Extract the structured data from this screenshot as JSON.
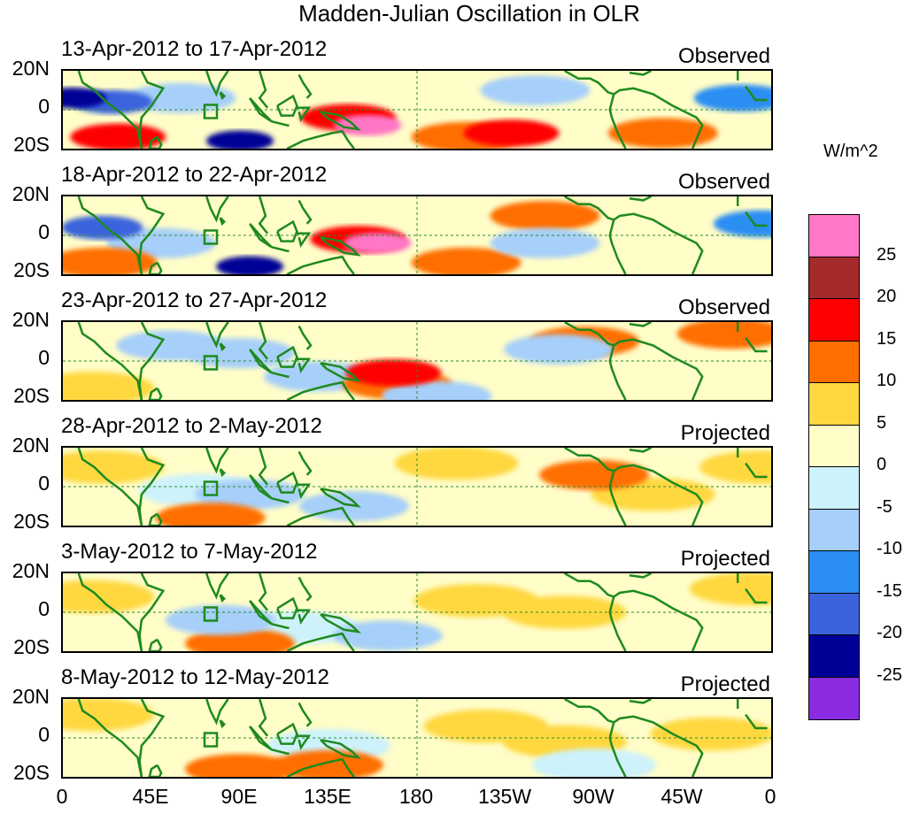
{
  "title": "Madden-Julian Oscillation in OLR",
  "chart_data": {
    "type": "heatmap",
    "title": "Madden-Julian Oscillation in OLR",
    "units": "W/m^2",
    "y_ticks": [
      "20N",
      "0",
      "20S"
    ],
    "x_ticks": [
      "0",
      "45E",
      "90E",
      "135E",
      "180",
      "135W",
      "90W",
      "45W",
      "0"
    ],
    "x_range_deg_east": [
      0,
      360
    ],
    "y_range_deg": [
      -20,
      20
    ],
    "colorbar": {
      "levels": [
        "25",
        "20",
        "15",
        "10",
        "5",
        "0",
        "-5",
        "-10",
        "-15",
        "-20",
        "-25"
      ],
      "colors": [
        "#ff77c6",
        "#a52a2a",
        "#ff0000",
        "#ff6e00",
        "#ffd840",
        "#fffdc8",
        "#cdf2fb",
        "#a6cff9",
        "#2a8ef3",
        "#3b63dc",
        "#000096",
        "#8a2be2"
      ]
    },
    "panels": [
      {
        "period": "13-Apr-2012 to 17-Apr-2012",
        "type": "Observed",
        "features": [
          {
            "lon": 5,
            "lat": 6,
            "value": -25
          },
          {
            "lon": 25,
            "lat": 4,
            "value": -20
          },
          {
            "lon": 60,
            "lat": 6,
            "value": -10
          },
          {
            "lon": 90,
            "lat": -16,
            "value": -25
          },
          {
            "lon": 155,
            "lat": -8,
            "value": 25
          },
          {
            "lon": 145,
            "lat": -4,
            "value": 15
          },
          {
            "lon": 205,
            "lat": -14,
            "value": 10
          },
          {
            "lon": 228,
            "lat": -12,
            "value": 15
          },
          {
            "lon": 240,
            "lat": 10,
            "value": -10
          },
          {
            "lon": 345,
            "lat": 6,
            "value": -15
          },
          {
            "lon": 28,
            "lat": -14,
            "value": 15
          },
          {
            "lon": 305,
            "lat": -12,
            "value": 10
          }
        ]
      },
      {
        "period": "18-Apr-2012 to 22-Apr-2012",
        "type": "Observed",
        "features": [
          {
            "lon": 20,
            "lat": 4,
            "value": -20
          },
          {
            "lon": 50,
            "lat": -4,
            "value": -10
          },
          {
            "lon": 95,
            "lat": -16,
            "value": -25
          },
          {
            "lon": 160,
            "lat": -4,
            "value": 25
          },
          {
            "lon": 150,
            "lat": -2,
            "value": 15
          },
          {
            "lon": 205,
            "lat": -14,
            "value": 10
          },
          {
            "lon": 245,
            "lat": 10,
            "value": 10
          },
          {
            "lon": 245,
            "lat": -4,
            "value": -10
          },
          {
            "lon": 355,
            "lat": 6,
            "value": -15
          },
          {
            "lon": 20,
            "lat": -14,
            "value": 10
          }
        ]
      },
      {
        "period": "23-Apr-2012 to 27-Apr-2012",
        "type": "Observed",
        "features": [
          {
            "lon": 55,
            "lat": 8,
            "value": -10
          },
          {
            "lon": 90,
            "lat": 4,
            "value": -10
          },
          {
            "lon": 130,
            "lat": -8,
            "value": -10
          },
          {
            "lon": 168,
            "lat": -6,
            "value": 15
          },
          {
            "lon": 170,
            "lat": -12,
            "value": 10
          },
          {
            "lon": 190,
            "lat": -18,
            "value": -10
          },
          {
            "lon": 265,
            "lat": 10,
            "value": 10
          },
          {
            "lon": 252,
            "lat": 6,
            "value": -10
          },
          {
            "lon": 340,
            "lat": 14,
            "value": 10
          },
          {
            "lon": 15,
            "lat": -14,
            "value": 5
          }
        ]
      },
      {
        "period": "28-Apr-2012 to 2-May-2012",
        "type": "Projected",
        "features": [
          {
            "lon": 70,
            "lat": -2,
            "value": -5
          },
          {
            "lon": 95,
            "lat": -4,
            "value": -10
          },
          {
            "lon": 148,
            "lat": -10,
            "value": -10
          },
          {
            "lon": 75,
            "lat": -16,
            "value": 10
          },
          {
            "lon": 200,
            "lat": 12,
            "value": 5
          },
          {
            "lon": 270,
            "lat": 6,
            "value": 10
          },
          {
            "lon": 300,
            "lat": -4,
            "value": 5
          },
          {
            "lon": 355,
            "lat": 10,
            "value": 5
          },
          {
            "lon": 20,
            "lat": 10,
            "value": 5
          }
        ]
      },
      {
        "period": "3-May-2012 to 7-May-2012",
        "type": "Projected",
        "features": [
          {
            "lon": 90,
            "lat": -16,
            "value": 10
          },
          {
            "lon": 120,
            "lat": -8,
            "value": -5
          },
          {
            "lon": 80,
            "lat": -4,
            "value": -10
          },
          {
            "lon": 165,
            "lat": -12,
            "value": -10
          },
          {
            "lon": 210,
            "lat": 6,
            "value": 5
          },
          {
            "lon": 255,
            "lat": 0,
            "value": 5
          },
          {
            "lon": 350,
            "lat": 12,
            "value": 5
          },
          {
            "lon": 15,
            "lat": 8,
            "value": 5
          }
        ]
      },
      {
        "period": "8-May-2012 to 12-May-2012",
        "type": "Projected",
        "features": [
          {
            "lon": 90,
            "lat": -16,
            "value": 10
          },
          {
            "lon": 135,
            "lat": -14,
            "value": 10
          },
          {
            "lon": 135,
            "lat": -4,
            "value": -5
          },
          {
            "lon": 215,
            "lat": 6,
            "value": 5
          },
          {
            "lon": 255,
            "lat": -2,
            "value": 5
          },
          {
            "lon": 330,
            "lat": 2,
            "value": 5
          },
          {
            "lon": 15,
            "lat": 12,
            "value": 5
          },
          {
            "lon": 270,
            "lat": -14,
            "value": -5
          }
        ]
      }
    ]
  }
}
